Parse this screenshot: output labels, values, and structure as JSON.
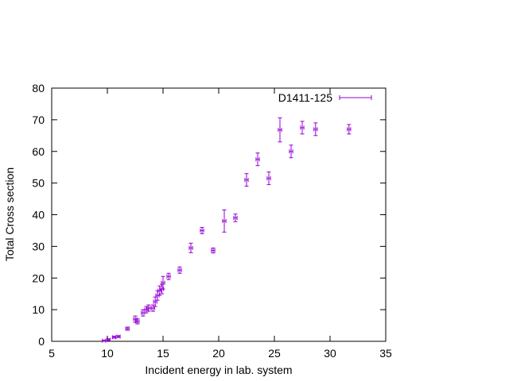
{
  "chart_data": {
    "type": "scatter",
    "xlabel": "Incident energy in lab. system",
    "ylabel": "Total Cross section",
    "xlim": [
      5,
      35
    ],
    "ylim": [
      0,
      80
    ],
    "xticks": [
      "5",
      "10",
      "15",
      "20",
      "25",
      "30",
      "35"
    ],
    "yticks": [
      "0",
      "10",
      "20",
      "30",
      "40",
      "50",
      "60",
      "70",
      "80"
    ],
    "grid": false,
    "legend_position": "top-right",
    "series": [
      {
        "name": "D1411-125",
        "color": "#9400d3",
        "marker": "error-bars",
        "points": [
          {
            "x": 9.7,
            "y": 0.2,
            "xerr": 0.15,
            "yerr": 0.2
          },
          {
            "x": 10.1,
            "y": 0.5,
            "xerr": 0.15,
            "yerr": 0.3
          },
          {
            "x": 10.6,
            "y": 1.3,
            "xerr": 0.15,
            "yerr": 0.3
          },
          {
            "x": 11.0,
            "y": 1.5,
            "xerr": 0.15,
            "yerr": 0.3
          },
          {
            "x": 11.8,
            "y": 4.0,
            "xerr": 0.15,
            "yerr": 0.5
          },
          {
            "x": 12.5,
            "y": 7.0,
            "xerr": 0.15,
            "yerr": 1.0
          },
          {
            "x": 12.7,
            "y": 6.3,
            "xerr": 0.15,
            "yerr": 0.8
          },
          {
            "x": 13.2,
            "y": 9.0,
            "xerr": 0.15,
            "yerr": 1.0
          },
          {
            "x": 13.5,
            "y": 10.0,
            "xerr": 0.15,
            "yerr": 1.0
          },
          {
            "x": 13.7,
            "y": 10.5,
            "xerr": 0.15,
            "yerr": 1.0
          },
          {
            "x": 14.1,
            "y": 10.5,
            "xerr": 0.15,
            "yerr": 1.0
          },
          {
            "x": 14.3,
            "y": 12.5,
            "xerr": 0.15,
            "yerr": 1.5
          },
          {
            "x": 14.5,
            "y": 14.5,
            "xerr": 0.15,
            "yerr": 1.5
          },
          {
            "x": 14.7,
            "y": 16.0,
            "xerr": 0.15,
            "yerr": 1.5
          },
          {
            "x": 14.9,
            "y": 16.5,
            "xerr": 0.15,
            "yerr": 1.5
          },
          {
            "x": 15.0,
            "y": 18.5,
            "xerr": 0.15,
            "yerr": 2.0
          },
          {
            "x": 15.5,
            "y": 20.5,
            "xerr": 0.15,
            "yerr": 1.0
          },
          {
            "x": 16.5,
            "y": 22.5,
            "xerr": 0.15,
            "yerr": 1.0
          },
          {
            "x": 17.5,
            "y": 29.5,
            "xerr": 0.15,
            "yerr": 1.5
          },
          {
            "x": 18.5,
            "y": 35.0,
            "xerr": 0.15,
            "yerr": 1.0
          },
          {
            "x": 19.5,
            "y": 28.7,
            "xerr": 0.15,
            "yerr": 0.8
          },
          {
            "x": 20.5,
            "y": 38.0,
            "xerr": 0.15,
            "yerr": 3.5
          },
          {
            "x": 21.5,
            "y": 39.0,
            "xerr": 0.15,
            "yerr": 1.2
          },
          {
            "x": 22.5,
            "y": 51.0,
            "xerr": 0.15,
            "yerr": 2.0
          },
          {
            "x": 23.5,
            "y": 57.5,
            "xerr": 0.15,
            "yerr": 2.0
          },
          {
            "x": 24.5,
            "y": 51.5,
            "xerr": 0.15,
            "yerr": 2.0
          },
          {
            "x": 25.5,
            "y": 66.8,
            "xerr": 0.15,
            "yerr": 3.8
          },
          {
            "x": 26.5,
            "y": 60.0,
            "xerr": 0.15,
            "yerr": 2.0
          },
          {
            "x": 27.5,
            "y": 67.5,
            "xerr": 0.15,
            "yerr": 2.0
          },
          {
            "x": 28.7,
            "y": 67.0,
            "xerr": 0.15,
            "yerr": 2.0
          },
          {
            "x": 31.7,
            "y": 67.0,
            "xerr": 0.15,
            "yerr": 1.5
          }
        ]
      }
    ]
  }
}
